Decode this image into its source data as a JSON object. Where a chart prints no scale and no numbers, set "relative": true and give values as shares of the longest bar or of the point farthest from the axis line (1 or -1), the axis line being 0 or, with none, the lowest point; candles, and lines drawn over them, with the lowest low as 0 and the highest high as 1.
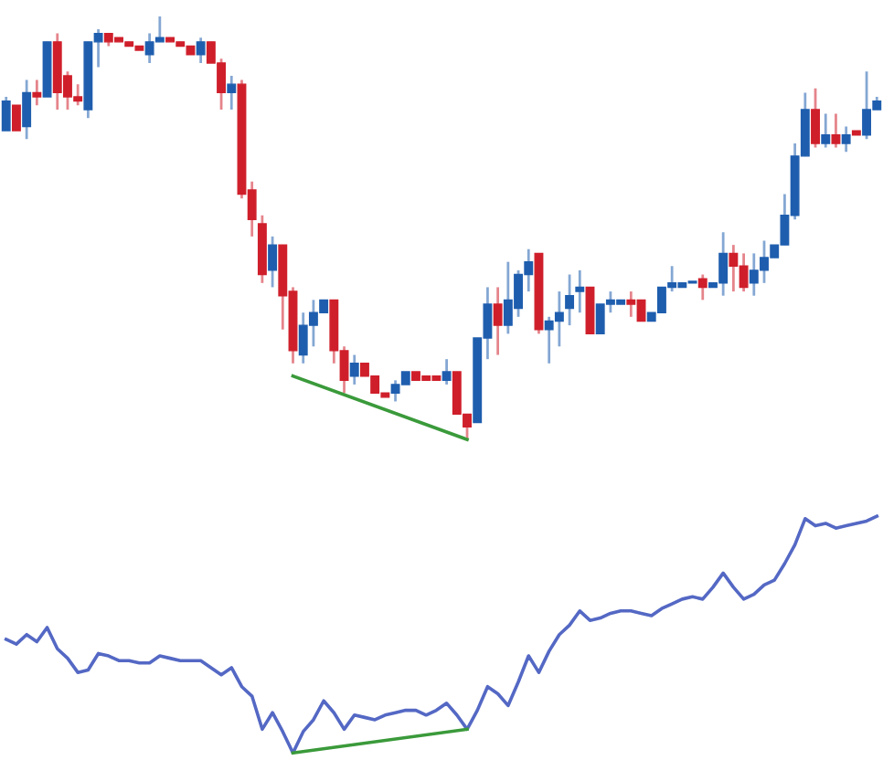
{
  "chart_data": [
    {
      "type": "candlestick",
      "relative": true,
      "grid": false,
      "legend": false,
      "categories": [
        null,
        null,
        null,
        null,
        null,
        null,
        null,
        null,
        null,
        null,
        null,
        null,
        null,
        null,
        null,
        null,
        null,
        null,
        null,
        null,
        null,
        null,
        null,
        null,
        null,
        null,
        null,
        null,
        null,
        null,
        null,
        null,
        null,
        null,
        null,
        null,
        null,
        null,
        null,
        null,
        null,
        null,
        null,
        null,
        null,
        null,
        null,
        null,
        null,
        null,
        null,
        null,
        null,
        null,
        null,
        null,
        null,
        null,
        null,
        null,
        null,
        null,
        null,
        null,
        null,
        null,
        null,
        null,
        null,
        null,
        null,
        null,
        null,
        null,
        null,
        null,
        null,
        null,
        null,
        null,
        null,
        null,
        null,
        null,
        null,
        null
      ],
      "ohlc": [
        [
          0.73,
          0.81,
          0.73,
          0.8
        ],
        [
          0.79,
          0.79,
          0.73,
          0.73
        ],
        [
          0.74,
          0.85,
          0.71,
          0.82
        ],
        [
          0.82,
          0.85,
          0.79,
          0.81
        ],
        [
          0.81,
          0.94,
          0.81,
          0.94
        ],
        [
          0.94,
          0.96,
          0.78,
          0.82
        ],
        [
          0.86,
          0.87,
          0.78,
          0.81
        ],
        [
          0.81,
          0.84,
          0.79,
          0.8
        ],
        [
          0.78,
          0.94,
          0.76,
          0.94
        ],
        [
          0.94,
          0.97,
          0.88,
          0.96
        ],
        [
          0.96,
          0.96,
          0.93,
          0.94
        ],
        [
          0.95,
          0.95,
          0.94,
          0.94
        ],
        [
          0.94,
          0.94,
          0.93,
          0.93
        ],
        [
          0.93,
          0.93,
          0.92,
          0.92
        ],
        [
          0.91,
          0.96,
          0.89,
          0.94
        ],
        [
          0.94,
          1.0,
          0.94,
          0.95
        ],
        [
          0.95,
          0.95,
          0.94,
          0.94
        ],
        [
          0.94,
          0.94,
          0.93,
          0.93
        ],
        [
          0.93,
          0.93,
          0.91,
          0.91
        ],
        [
          0.91,
          0.95,
          0.89,
          0.94
        ],
        [
          0.94,
          0.94,
          0.89,
          0.89
        ],
        [
          0.89,
          0.9,
          0.78,
          0.82
        ],
        [
          0.82,
          0.86,
          0.78,
          0.84
        ],
        [
          0.84,
          0.85,
          0.57,
          0.58
        ],
        [
          0.59,
          0.61,
          0.48,
          0.52
        ],
        [
          0.51,
          0.53,
          0.37,
          0.39
        ],
        [
          0.4,
          0.48,
          0.36,
          0.46
        ],
        [
          0.46,
          0.46,
          0.26,
          0.34
        ],
        [
          0.35,
          0.36,
          0.18,
          0.21
        ],
        [
          0.2,
          0.3,
          0.18,
          0.27
        ],
        [
          0.27,
          0.33,
          0.22,
          0.3
        ],
        [
          0.3,
          0.33,
          0.3,
          0.33
        ],
        [
          0.33,
          0.33,
          0.18,
          0.21
        ],
        [
          0.21,
          0.22,
          0.11,
          0.14
        ],
        [
          0.15,
          0.2,
          0.13,
          0.18
        ],
        [
          0.18,
          0.18,
          0.15,
          0.15
        ],
        [
          0.15,
          0.15,
          0.11,
          0.11
        ],
        [
          0.11,
          0.11,
          0.1,
          0.1
        ],
        [
          0.11,
          0.14,
          0.09,
          0.13
        ],
        [
          0.13,
          0.16,
          0.13,
          0.16
        ],
        [
          0.16,
          0.16,
          0.14,
          0.14
        ],
        [
          0.15,
          0.15,
          0.14,
          0.14
        ],
        [
          0.15,
          0.15,
          0.14,
          0.14
        ],
        [
          0.14,
          0.19,
          0.13,
          0.16
        ],
        [
          0.16,
          0.16,
          0.06,
          0.06
        ],
        [
          0.06,
          0.06,
          0.0,
          0.03
        ],
        [
          0.04,
          0.24,
          0.04,
          0.24
        ],
        [
          0.24,
          0.36,
          0.19,
          0.32
        ],
        [
          0.32,
          0.36,
          0.2,
          0.27
        ],
        [
          0.27,
          0.42,
          0.25,
          0.33
        ],
        [
          0.31,
          0.4,
          0.29,
          0.39
        ],
        [
          0.39,
          0.45,
          0.35,
          0.42
        ],
        [
          0.44,
          0.44,
          0.25,
          0.26
        ],
        [
          0.26,
          0.29,
          0.18,
          0.28
        ],
        [
          0.28,
          0.35,
          0.22,
          0.3
        ],
        [
          0.31,
          0.39,
          0.27,
          0.34
        ],
        [
          0.35,
          0.4,
          0.3,
          0.36
        ],
        [
          0.36,
          0.36,
          0.25,
          0.25
        ],
        [
          0.25,
          0.32,
          0.25,
          0.32
        ],
        [
          0.32,
          0.35,
          0.3,
          0.33
        ],
        [
          0.32,
          0.33,
          0.32,
          0.33
        ],
        [
          0.33,
          0.35,
          0.29,
          0.32
        ],
        [
          0.33,
          0.33,
          0.28,
          0.28
        ],
        [
          0.28,
          0.3,
          0.28,
          0.3
        ],
        [
          0.3,
          0.36,
          0.3,
          0.36
        ],
        [
          0.36,
          0.41,
          0.35,
          0.37
        ],
        [
          0.36,
          0.37,
          0.36,
          0.37
        ],
        [
          0.37,
          0.37,
          0.37,
          0.37
        ],
        [
          0.38,
          0.39,
          0.33,
          0.36
        ],
        [
          0.36,
          0.37,
          0.36,
          0.37
        ],
        [
          0.37,
          0.49,
          0.34,
          0.44
        ],
        [
          0.44,
          0.46,
          0.35,
          0.41
        ],
        [
          0.41,
          0.44,
          0.35,
          0.36
        ],
        [
          0.37,
          0.44,
          0.34,
          0.4
        ],
        [
          0.4,
          0.47,
          0.37,
          0.43
        ],
        [
          0.43,
          0.46,
          0.43,
          0.46
        ],
        [
          0.46,
          0.58,
          0.46,
          0.53
        ],
        [
          0.53,
          0.7,
          0.52,
          0.67
        ],
        [
          0.67,
          0.82,
          0.67,
          0.78
        ],
        [
          0.78,
          0.83,
          0.69,
          0.7
        ],
        [
          0.7,
          0.77,
          0.69,
          0.72
        ],
        [
          0.72,
          0.77,
          0.69,
          0.7
        ],
        [
          0.7,
          0.74,
          0.68,
          0.72
        ],
        [
          0.73,
          0.73,
          0.72,
          0.72
        ],
        [
          0.72,
          0.87,
          0.71,
          0.78
        ],
        [
          0.78,
          0.81,
          0.78,
          0.8
        ]
      ],
      "colors": [
        "#1f5eae",
        "#cf1f2b",
        "#1f5eae",
        "#cf1f2b",
        "#1f5eae",
        "#cf1f2b",
        "#cf1f2b",
        "#cf1f2b",
        "#1f5eae",
        "#1f5eae",
        "#cf1f2b",
        "#cf1f2b",
        "#cf1f2b",
        "#cf1f2b",
        "#1f5eae",
        "#1f5eae",
        "#cf1f2b",
        "#cf1f2b",
        "#cf1f2b",
        "#1f5eae",
        "#cf1f2b",
        "#cf1f2b",
        "#1f5eae",
        "#cf1f2b",
        "#cf1f2b",
        "#cf1f2b",
        "#1f5eae",
        "#cf1f2b",
        "#cf1f2b",
        "#1f5eae",
        "#1f5eae",
        "#1f5eae",
        "#cf1f2b",
        "#cf1f2b",
        "#1f5eae",
        "#cf1f2b",
        "#cf1f2b",
        "#cf1f2b",
        "#1f5eae",
        "#1f5eae",
        "#cf1f2b",
        "#cf1f2b",
        "#cf1f2b",
        "#1f5eae",
        "#cf1f2b",
        "#cf1f2b",
        "#1f5eae",
        "#1f5eae",
        "#cf1f2b",
        "#1f5eae",
        "#1f5eae",
        "#1f5eae",
        "#cf1f2b",
        "#1f5eae",
        "#1f5eae",
        "#1f5eae",
        "#1f5eae",
        "#cf1f2b",
        "#1f5eae",
        "#1f5eae",
        "#1f5eae",
        "#cf1f2b",
        "#cf1f2b",
        "#1f5eae",
        "#1f5eae",
        "#1f5eae",
        "#1f5eae",
        "#1f5eae",
        "#cf1f2b",
        "#1f5eae",
        "#1f5eae",
        "#cf1f2b",
        "#cf1f2b",
        "#1f5eae",
        "#1f5eae",
        "#1f5eae",
        "#1f5eae",
        "#1f5eae",
        "#1f5eae",
        "#cf1f2b",
        "#1f5eae",
        "#cf1f2b",
        "#1f5eae",
        "#cf1f2b",
        "#1f5eae",
        "#1f5eae"
      ],
      "series": [
        {
          "type": "line",
          "color": "#3a9a3a",
          "values": [
            null,
            null,
            null,
            null,
            null,
            null,
            null,
            null,
            null,
            null,
            null,
            null,
            null,
            null,
            null,
            null,
            null,
            null,
            null,
            null,
            null,
            null,
            null,
            null,
            null,
            null,
            null,
            null,
            0.15,
            null,
            null,
            null,
            null,
            null,
            null,
            null,
            null,
            null,
            null,
            null,
            null,
            null,
            null,
            null,
            null,
            0.0,
            null,
            null,
            null,
            null,
            null,
            null,
            null,
            null,
            null,
            null,
            null,
            null,
            null,
            null,
            null,
            null,
            null,
            null,
            null,
            null,
            null,
            null,
            null,
            null,
            null,
            null,
            null,
            null,
            null,
            null,
            null,
            null,
            null,
            null,
            null,
            null,
            null,
            null,
            null,
            null
          ]
        }
      ]
    },
    {
      "type": "line",
      "relative": true,
      "grid": false,
      "legend": false,
      "categories": [
        null,
        null,
        null,
        null,
        null,
        null,
        null,
        null,
        null,
        null,
        null,
        null,
        null,
        null,
        null,
        null,
        null,
        null,
        null,
        null,
        null,
        null,
        null,
        null,
        null,
        null,
        null,
        null,
        null,
        null,
        null,
        null,
        null,
        null,
        null,
        null,
        null,
        null,
        null,
        null,
        null,
        null,
        null,
        null,
        null,
        null,
        null,
        null,
        null,
        null,
        null,
        null,
        null,
        null,
        null,
        null,
        null,
        null,
        null,
        null,
        null,
        null,
        null,
        null,
        null,
        null,
        null,
        null,
        null,
        null,
        null,
        null,
        null,
        null,
        null,
        null,
        null,
        null,
        null,
        null,
        null,
        null,
        null,
        null,
        null,
        null
      ],
      "series": [
        {
          "type": "line",
          "color": "#5468c4",
          "values": [
            0.48,
            0.46,
            0.5,
            0.47,
            0.53,
            0.44,
            0.4,
            0.34,
            0.35,
            0.42,
            0.41,
            0.39,
            0.39,
            0.38,
            0.38,
            0.41,
            0.4,
            0.39,
            0.39,
            0.39,
            0.36,
            0.33,
            0.36,
            0.28,
            0.24,
            0.1,
            0.17,
            0.09,
            0.0,
            0.09,
            0.14,
            0.22,
            0.17,
            0.1,
            0.16,
            0.15,
            0.14,
            0.16,
            0.17,
            0.18,
            0.18,
            0.16,
            0.18,
            0.21,
            0.16,
            0.1,
            0.18,
            0.28,
            0.25,
            0.2,
            0.3,
            0.41,
            0.34,
            0.43,
            0.5,
            0.54,
            0.6,
            0.56,
            0.57,
            0.59,
            0.6,
            0.6,
            0.59,
            0.58,
            0.61,
            0.63,
            0.65,
            0.66,
            0.65,
            0.7,
            0.76,
            0.7,
            0.65,
            0.67,
            0.71,
            0.73,
            0.8,
            0.88,
            0.99,
            0.96,
            0.97,
            0.95,
            0.96,
            0.97,
            0.98,
            1.0
          ]
        },
        {
          "type": "line",
          "color": "#3a9a3a",
          "values": [
            null,
            null,
            null,
            null,
            null,
            null,
            null,
            null,
            null,
            null,
            null,
            null,
            null,
            null,
            null,
            null,
            null,
            null,
            null,
            null,
            null,
            null,
            null,
            null,
            null,
            null,
            null,
            null,
            0.0,
            null,
            null,
            null,
            null,
            null,
            null,
            null,
            null,
            null,
            null,
            null,
            null,
            null,
            null,
            null,
            null,
            0.1,
            null,
            null,
            null,
            null,
            null,
            null,
            null,
            null,
            null,
            null,
            null,
            null,
            null,
            null,
            null,
            null,
            null,
            null,
            null,
            null,
            null,
            null,
            null,
            null,
            null,
            null,
            null,
            null,
            null,
            null,
            null,
            null,
            null,
            null,
            null,
            null,
            null,
            null,
            null,
            null
          ]
        }
      ]
    }
  ]
}
